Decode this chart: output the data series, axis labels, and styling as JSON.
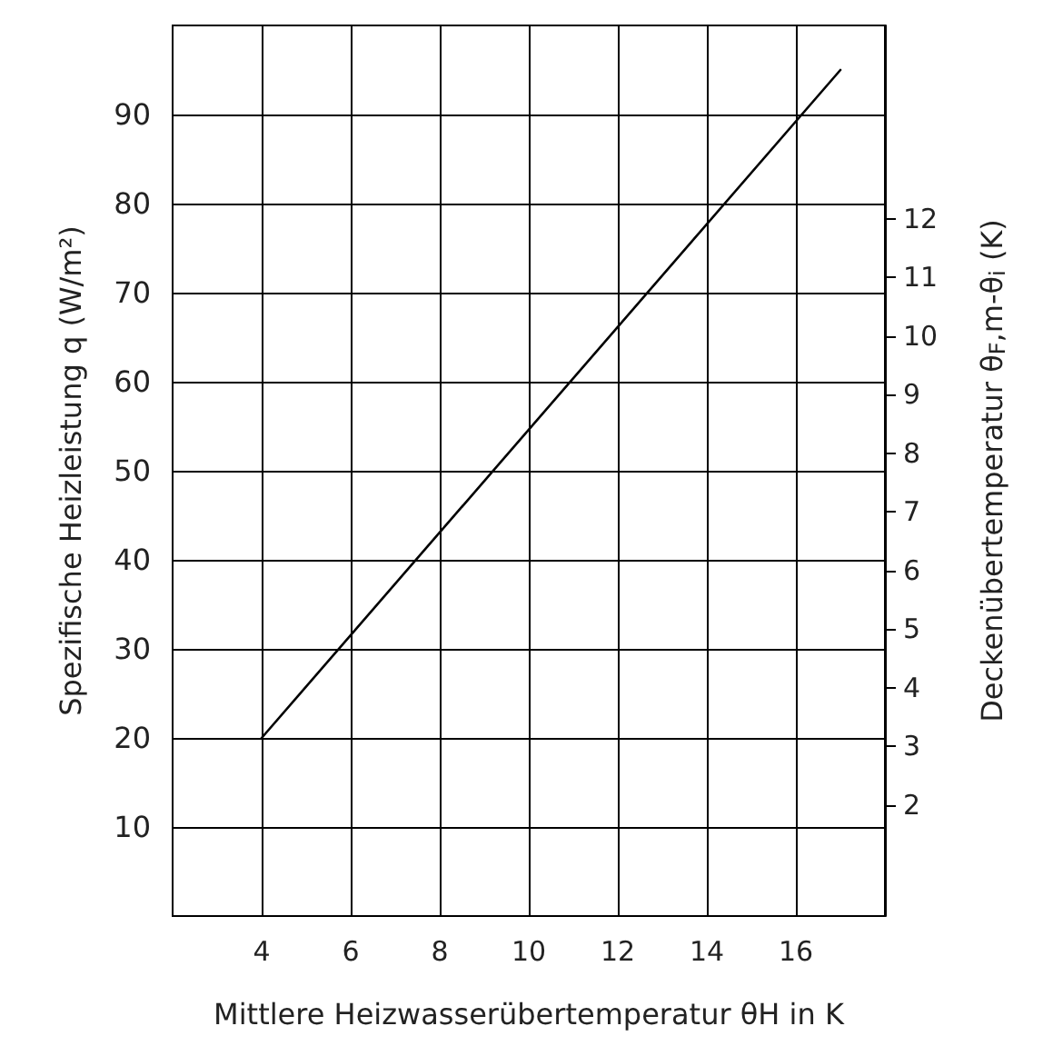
{
  "chart_data": {
    "type": "line",
    "xlabel": "Mittlere Heizwasserübertemperatur θH in K",
    "ylabel": "Spezifische Heizleistung q (W/m²)",
    "y2label": "Deckenübertemperatur θ$_{F}$,m-θ$_{i}$ (K)",
    "x": [
      4,
      17
    ],
    "series": [
      {
        "color": "#000000",
        "values": [
          20,
          95
        ]
      }
    ],
    "xlim": [
      2,
      18
    ],
    "xticks": [
      4,
      6,
      8,
      10,
      12,
      14,
      16
    ],
    "ylim": [
      0,
      100
    ],
    "yticks": [
      10,
      20,
      30,
      40,
      50,
      60,
      70,
      80,
      90
    ],
    "y2lim": [
      0.1,
      15.3
    ],
    "y2ticks": [
      2,
      3,
      4,
      5,
      6,
      7,
      8,
      9,
      10,
      11,
      12
    ],
    "grid": true,
    "marker": "none",
    "line_style": "solid"
  }
}
